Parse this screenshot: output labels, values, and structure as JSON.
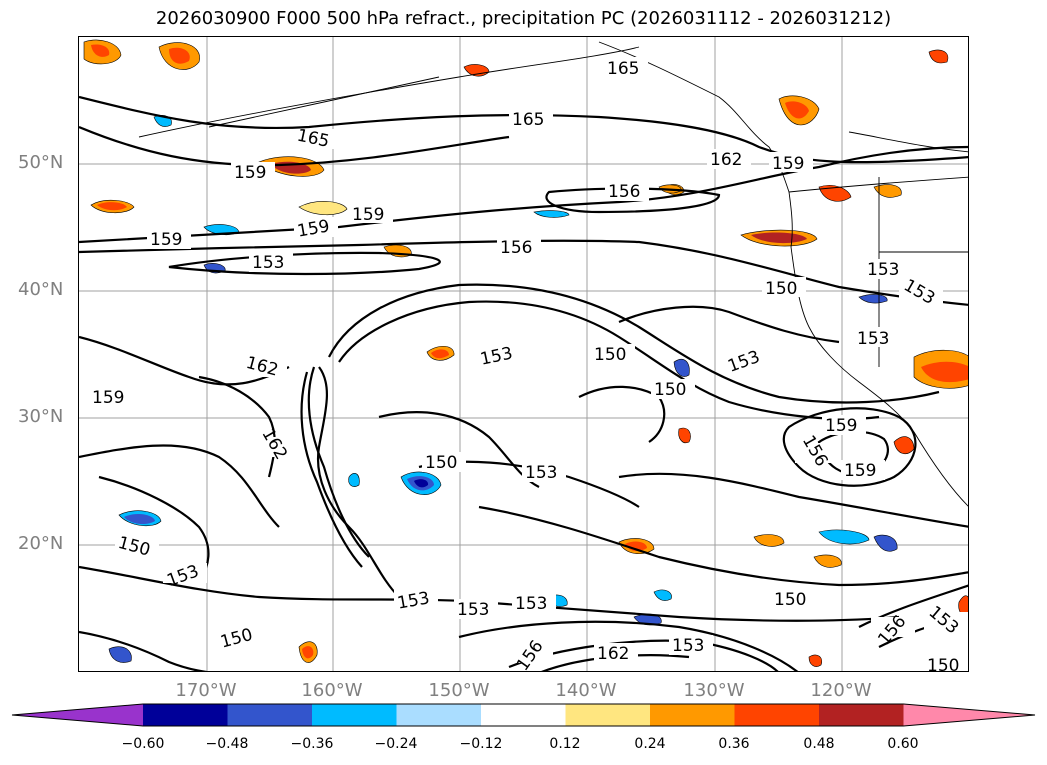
{
  "title": "2026030900 F000 500 hPa refract., precipitation PC (2026031112 - 2026031212)",
  "map": {
    "lat_labels": [
      "50°N",
      "40°N",
      "30°N",
      "20°N"
    ],
    "lon_labels": [
      "170°W",
      "160°W",
      "150°W",
      "140°W",
      "130°W",
      "120°W"
    ],
    "contour_labels": [
      "165",
      "165",
      "165",
      "162",
      "159",
      "156",
      "159",
      "159",
      "159",
      "156",
      "153",
      "153",
      "153",
      "150",
      "150",
      "153",
      "150",
      "162",
      "162",
      "153",
      "150",
      "150",
      "159",
      "156",
      "159",
      "153",
      "153",
      "153",
      "153",
      "153",
      "162",
      "156",
      "150",
      "156",
      "150",
      "159",
      "159",
      "153",
      "150",
      "153",
      "153",
      "150"
    ],
    "colors": {
      "land_border": "#000000",
      "grid": "#a0a0a0",
      "contour": "#000000"
    }
  },
  "colorbar": {
    "ticks": [
      "−0.60",
      "−0.48",
      "−0.36",
      "−0.24",
      "−0.12",
      "0.12",
      "0.24",
      "0.36",
      "0.48",
      "0.60"
    ],
    "colors": [
      "#9933cc",
      "#000099",
      "#3355cc",
      "#00bbff",
      "#aaddff",
      "#ffffff",
      "#ffe680",
      "#ff9900",
      "#ff4400",
      "#b22222",
      "#ff88aa"
    ]
  }
}
